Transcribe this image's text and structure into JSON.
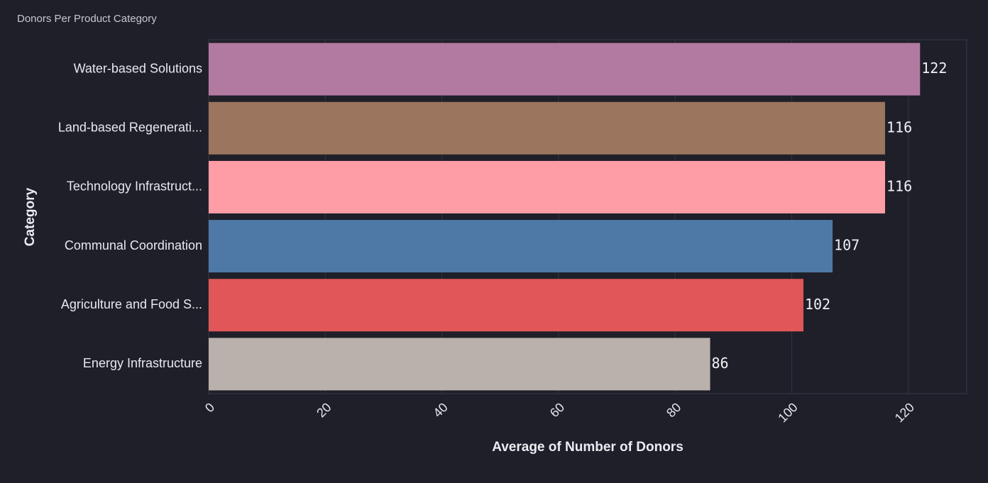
{
  "chart_data": {
    "type": "bar",
    "orientation": "horizontal",
    "title": "Donors Per Product Category",
    "xlabel": "Average of Number of Donors",
    "ylabel": "Category",
    "categories": [
      "Water-based Solutions",
      "Land-based Regenerati...",
      "Technology Infrastruct...",
      "Communal Coordination",
      "Agriculture and Food S...",
      "Energy Infrastructure"
    ],
    "values": [
      122,
      116,
      116,
      107,
      102,
      86
    ],
    "value_labels": [
      "122",
      "116",
      "116",
      "107",
      "102",
      "86"
    ],
    "colors": [
      "#b27aa1",
      "#9c755f",
      "#ff9da7",
      "#4e79a7",
      "#e15759",
      "#bab0ac"
    ],
    "xlim": [
      0,
      130
    ],
    "xticks": [
      0,
      20,
      40,
      60,
      80,
      100,
      120
    ],
    "xtick_labels": [
      "0",
      "20",
      "40",
      "60",
      "80",
      "100",
      "120"
    ],
    "grid": true
  }
}
